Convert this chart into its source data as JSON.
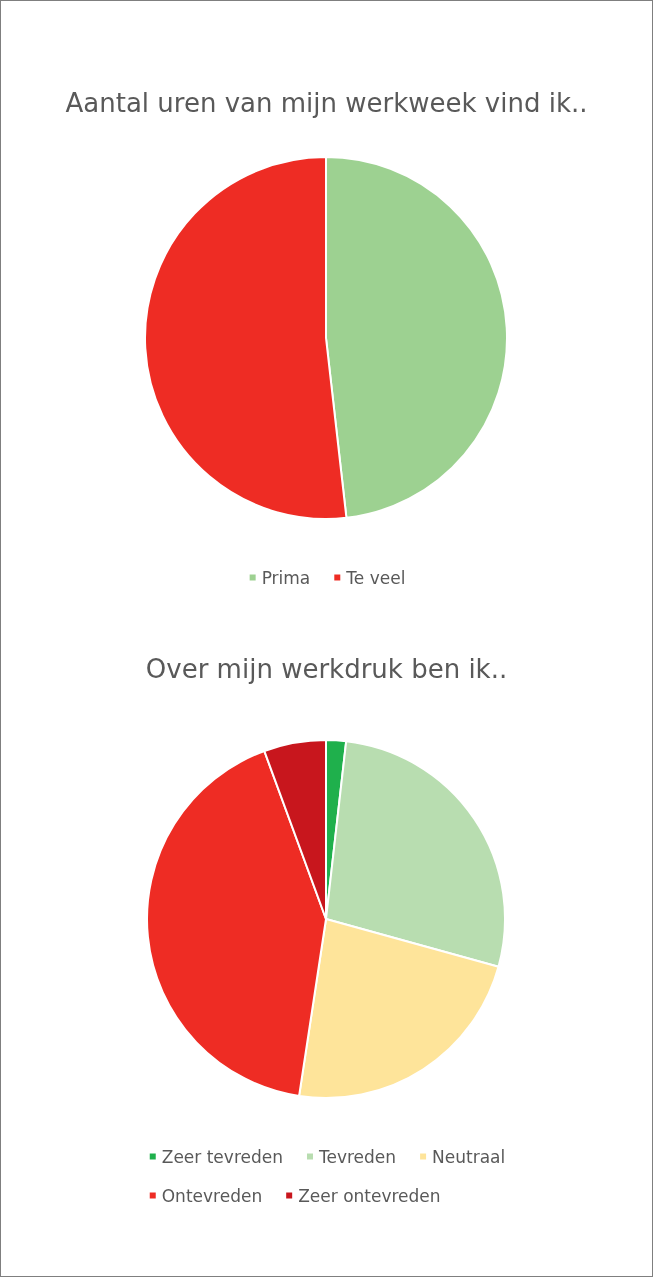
{
  "chart_data": [
    {
      "type": "pie",
      "title": "Aantal uren van mijn werkweek vind ik..",
      "categories": [
        "Prima",
        "Te veel"
      ],
      "values": [
        48.2,
        51.8
      ],
      "colors": [
        "#9dd191",
        "#ee2c24"
      ],
      "legend": "bottom"
    },
    {
      "type": "pie",
      "title": "Over mijn werkdruk ben ik..",
      "categories": [
        "Zeer tevreden",
        "Tevreden",
        "Neutraal",
        "Ontevreden",
        "Zeer ontevreden"
      ],
      "values": [
        1.8,
        27.5,
        23.1,
        42.0,
        5.6
      ],
      "colors": [
        "#1fb04c",
        "#b8ddb0",
        "#fee49a",
        "#ee2c24",
        "#c8161d"
      ],
      "legend": "bottom"
    }
  ]
}
